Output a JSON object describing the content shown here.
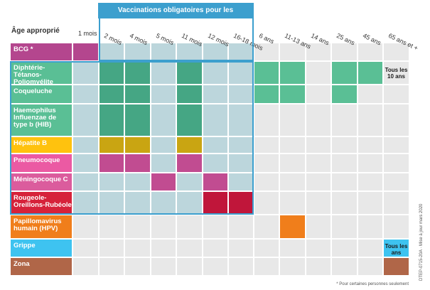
{
  "header": {
    "age_label": "Âge approprié",
    "infant_title": "Vaccinations obligatoires pour les nourrissons",
    "columns": [
      "1 mois",
      "2 mois",
      "4 mois",
      "5 mois",
      "11 mois",
      "12 mois",
      "16-18 mois",
      "6 ans",
      "11-13 ans",
      "14 ans",
      "25 ans",
      "45 ans",
      "65 ans et +"
    ]
  },
  "colors": {
    "bcg": "#b4468e",
    "dtp": "#5abf95",
    "dtp_infant": "#45a684",
    "hepb": "#ffc20e",
    "hepb_infant": "#c9a512",
    "pneumo": "#eb5aa3",
    "pneumo_infant": "#c14c91",
    "menc": "#db5c9d",
    "menc_infant": "#c14c91",
    "ror": "#d6223a",
    "ror_infant": "#c0163a",
    "hpv": "#f07e1b",
    "grippe": "#3ec3f0",
    "zona": "#b06648",
    "infant_bg": "#bcd6dc",
    "empty_bg": "#e8e8e8",
    "frame": "#3c9fce"
  },
  "rows": [
    {
      "label": "BCG *",
      "color_key": "bcg",
      "marks": [
        0
      ]
    },
    {
      "label": "Diphtérie-Tétanos-Poliomyélite",
      "color_key": "dtp",
      "marks": [
        1,
        2,
        4,
        7,
        8,
        10,
        11
      ]
    },
    {
      "label": "Coqueluche",
      "color_key": "dtp",
      "marks": [
        1,
        2,
        4,
        7,
        8,
        10
      ]
    },
    {
      "label": "Haemophilus Influenzae de type b (HIB)",
      "color_key": "dtp",
      "marks": [
        1,
        2,
        4
      ]
    },
    {
      "label": "Hépatite B",
      "color_key": "hepb",
      "marks": [
        1,
        2,
        4
      ]
    },
    {
      "label": "Pneumocoque",
      "color_key": "pneumo",
      "marks": [
        1,
        2,
        4
      ]
    },
    {
      "label": "Méningocoque C",
      "color_key": "menc",
      "marks": [
        3,
        5
      ]
    },
    {
      "label": "Rougeole-Oreillons-Rubéole",
      "color_key": "ror",
      "marks": [
        5,
        6
      ]
    },
    {
      "label": "Papillomavirus humain (HPV)",
      "color_key": "hpv",
      "marks": [
        8
      ]
    },
    {
      "label": "Grippe",
      "color_key": "grippe",
      "marks": [
        12
      ]
    },
    {
      "label": "Zona",
      "color_key": "zona",
      "marks": [
        12
      ]
    }
  ],
  "badges": {
    "dtp_65": "Tous les 10 ans",
    "grippe_65": "Tous les ans"
  },
  "notes": {
    "side": "DTEP-0715-20A · Mise à jour mars 2020",
    "foot": "* Pour certaines personnes seulement"
  }
}
